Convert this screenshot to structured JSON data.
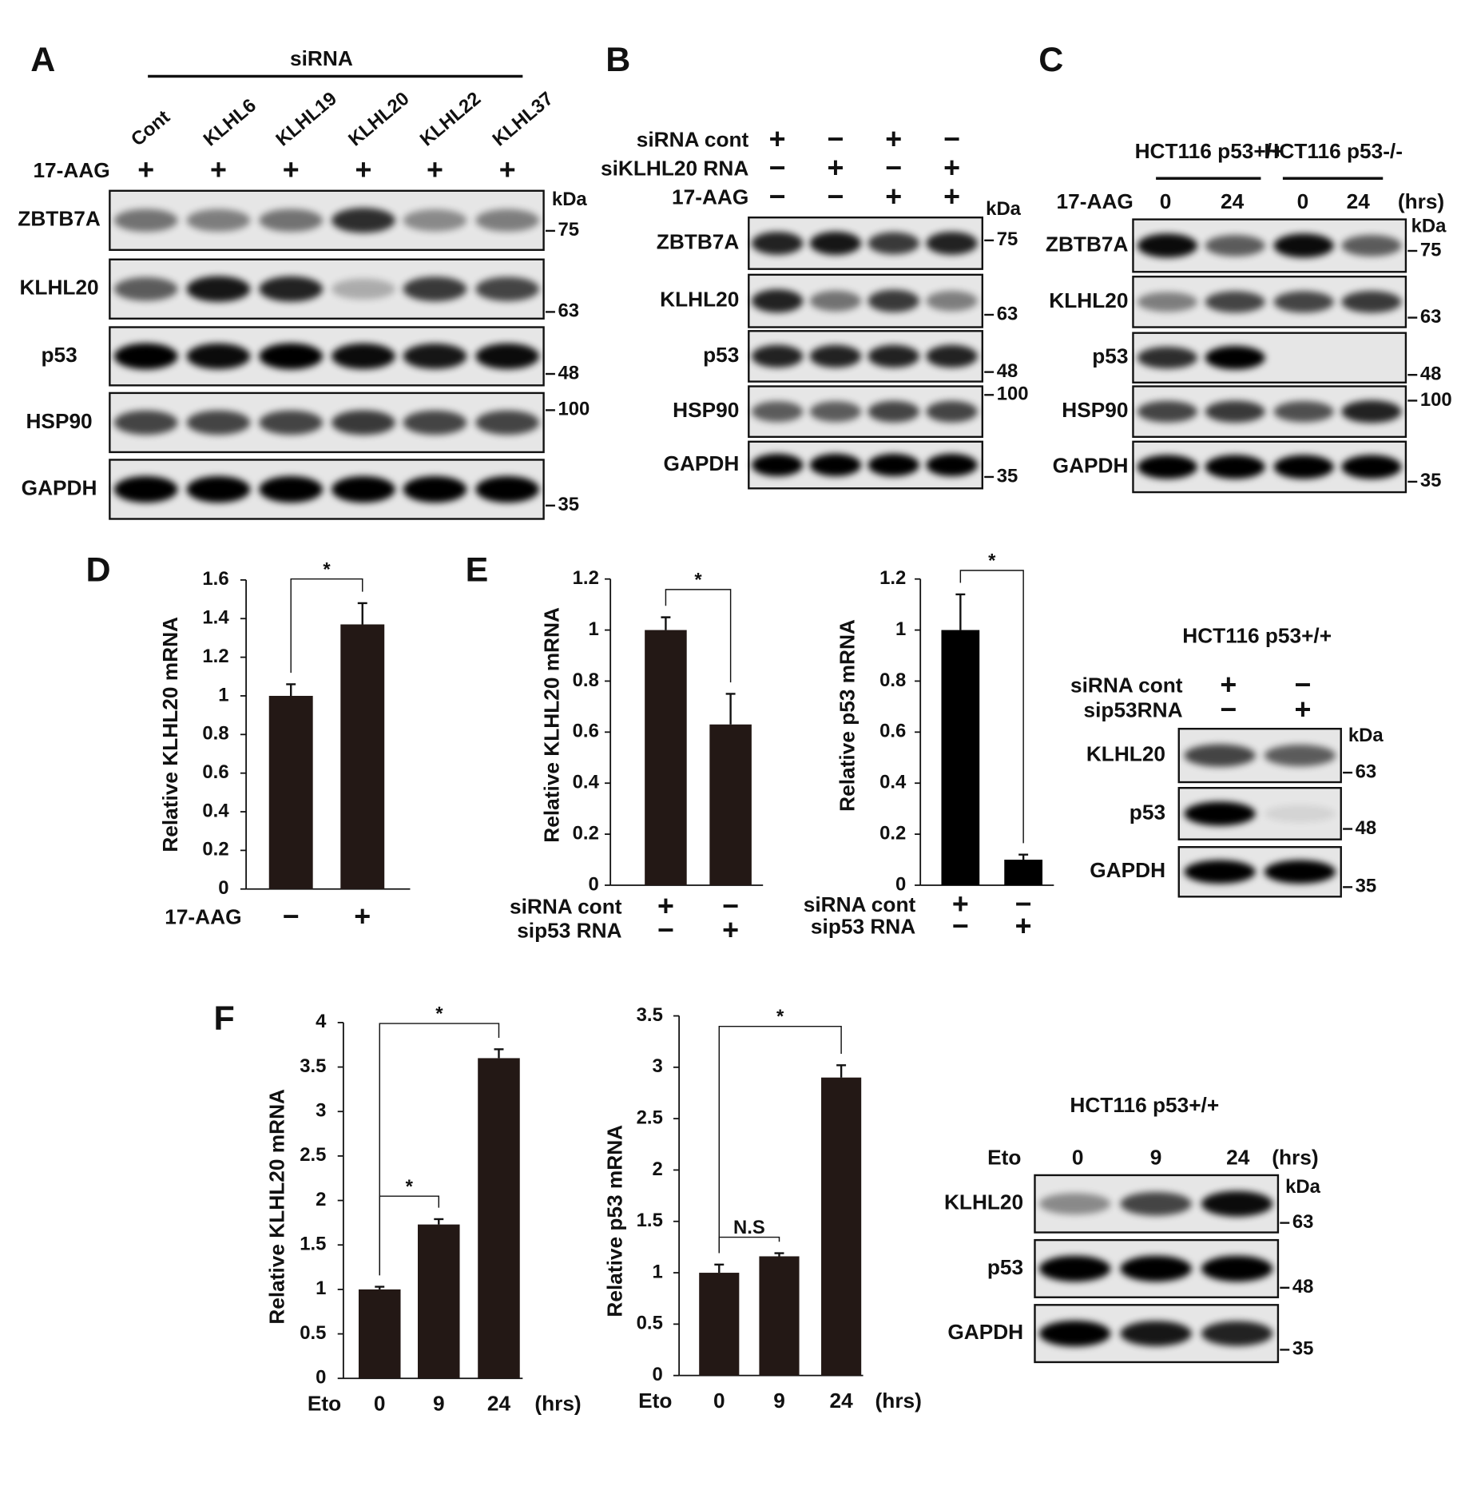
{
  "panel_letters": [
    "A",
    "B",
    "C",
    "D",
    "E",
    "F"
  ],
  "blots": [
    {
      "group_labels": [
        "siRNA"
      ],
      "lane_labels": [
        "Cont",
        "KLHL6",
        "KLHL19",
        "KLHL20",
        "KLHL22",
        "KLHL37"
      ],
      "conditions": [
        {
          "label": "17-AAG",
          "marks": [
            "+",
            "+",
            "+",
            "+",
            "+",
            "+"
          ]
        }
      ],
      "rows": [
        "ZBTB7A",
        "KLHL20",
        "p53",
        "HSP90",
        "GAPDH"
      ],
      "kda_unit": "kDa",
      "kda_markers": [
        75,
        63,
        48,
        100,
        35
      ]
    },
    {
      "conditions": [
        {
          "label": "siRNA cont",
          "marks": [
            "+",
            "−",
            "+",
            "−"
          ]
        },
        {
          "label": "siKLHL20 RNA",
          "marks": [
            "−",
            "+",
            "−",
            "+"
          ]
        },
        {
          "label": "17-AAG",
          "marks": [
            "−",
            "−",
            "+",
            "+"
          ]
        }
      ],
      "rows": [
        "ZBTB7A",
        "KLHL20",
        "p53",
        "HSP90",
        "GAPDH"
      ],
      "kda_unit": "kDa",
      "kda_markers": [
        75,
        63,
        48,
        100,
        35
      ]
    },
    {
      "group_labels": [
        "HCT116 p53+/+",
        "HCT116 p53-/-"
      ],
      "conditions": [
        {
          "label": "17-AAG",
          "marks": [
            "0",
            "24",
            "0",
            "24"
          ],
          "unit": "(hrs)"
        }
      ],
      "rows": [
        "ZBTB7A",
        "KLHL20",
        "p53",
        "HSP90",
        "GAPDH"
      ],
      "kda_unit": "kDa",
      "kda_markers": [
        75,
        63,
        48,
        100,
        35
      ]
    },
    {
      "title": "HCT116 p53+/+",
      "conditions": [
        {
          "label": "siRNA cont",
          "marks": [
            "+",
            "−"
          ]
        },
        {
          "label": "sip53RNA",
          "marks": [
            "−",
            "+"
          ]
        }
      ],
      "rows": [
        "KLHL20",
        "p53",
        "GAPDH"
      ],
      "kda_unit": "kDa",
      "kda_markers": [
        63,
        48,
        35
      ]
    },
    {
      "title": "HCT116 p53+/+",
      "conditions": [
        {
          "label": "Eto",
          "marks": [
            "0",
            "9",
            "24"
          ],
          "unit": "(hrs)"
        }
      ],
      "rows": [
        "KLHL20",
        "p53",
        "GAPDH"
      ],
      "kda_unit": "kDa",
      "kda_markers": [
        63,
        48,
        35
      ]
    }
  ],
  "chart_data": [
    {
      "type": "bar",
      "y_label": "Relative KLHL20 mRNA",
      "ylim": [
        0,
        1.6
      ],
      "yticks": [
        0,
        0.2,
        0.4,
        0.6,
        0.8,
        1,
        1.2,
        1.4,
        1.6
      ],
      "values": [
        1,
        1.37
      ],
      "errors": [
        0.06,
        0.11
      ],
      "color": "#231815",
      "conditions": [
        {
          "label": "17-AAG",
          "marks": [
            "−",
            "+"
          ]
        }
      ],
      "significance": [
        {
          "label": "*",
          "between": [
            0,
            1
          ]
        }
      ]
    },
    {
      "type": "bar",
      "y_label": "Relative KLHL20 mRNA",
      "ylim": [
        0,
        1.2
      ],
      "yticks": [
        0,
        0.2,
        0.4,
        0.6,
        0.8,
        1,
        1.2
      ],
      "values": [
        1,
        0.63
      ],
      "errors": [
        0.05,
        0.12
      ],
      "color": "#231815",
      "conditions": [
        {
          "label": "siRNA cont",
          "marks": [
            "+",
            "−"
          ]
        },
        {
          "label": "sip53 RNA",
          "marks": [
            "−",
            "+"
          ]
        }
      ],
      "significance": [
        {
          "label": "*",
          "between": [
            0,
            1
          ]
        }
      ]
    },
    {
      "type": "bar",
      "y_label": "Relative p53 mRNA",
      "ylim": [
        0,
        1.2
      ],
      "yticks": [
        0,
        0.2,
        0.4,
        0.6,
        0.8,
        1,
        1.2
      ],
      "values": [
        1,
        0.1
      ],
      "errors": [
        0.14,
        0.02
      ],
      "color": "#000000",
      "conditions": [
        {
          "label": "siRNA cont",
          "marks": [
            "+",
            "−"
          ]
        },
        {
          "label": "sip53 RNA",
          "marks": [
            "−",
            "+"
          ]
        }
      ],
      "significance": [
        {
          "label": "*",
          "between": [
            0,
            1
          ]
        }
      ]
    },
    {
      "type": "bar",
      "y_label": "Relative KLHL20 mRNA",
      "ylim": [
        0,
        4
      ],
      "yticks": [
        0,
        0.5,
        1,
        1.5,
        2,
        2.5,
        3,
        3.5,
        4
      ],
      "values": [
        1,
        1.73,
        3.6
      ],
      "errors": [
        0.03,
        0.06,
        0.1
      ],
      "color": "#231815",
      "conditions": [
        {
          "label": "Eto",
          "marks": [
            "0",
            "9",
            "24"
          ],
          "unit": "(hrs)"
        }
      ],
      "significance": [
        {
          "label": "*",
          "between": [
            0,
            1
          ]
        },
        {
          "label": "*",
          "between": [
            0,
            2
          ]
        }
      ]
    },
    {
      "type": "bar",
      "y_label": "Relative p53 mRNA",
      "ylim": [
        0,
        3.5
      ],
      "yticks": [
        0,
        0.5,
        1,
        1.5,
        2,
        2.5,
        3,
        3.5
      ],
      "values": [
        1,
        1.16,
        2.9
      ],
      "errors": [
        0.08,
        0.03,
        0.12
      ],
      "color": "#231815",
      "conditions": [
        {
          "label": "Eto",
          "marks": [
            "0",
            "9",
            "24"
          ],
          "unit": "(hrs)"
        }
      ],
      "significance": [
        {
          "label": "N.S",
          "between": [
            0,
            1
          ]
        },
        {
          "label": "*",
          "between": [
            0,
            2
          ]
        }
      ]
    }
  ]
}
